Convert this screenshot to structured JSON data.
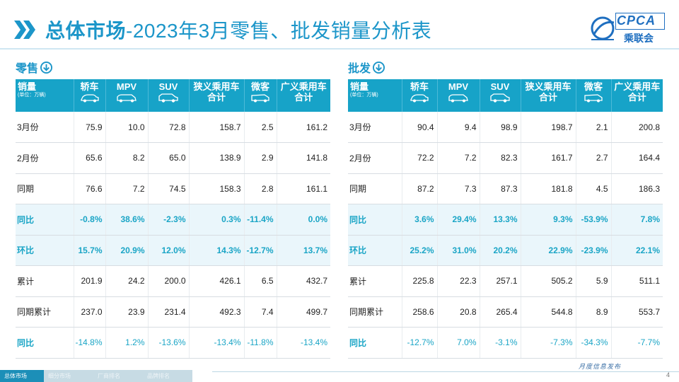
{
  "header": {
    "title_bold": "总体市场",
    "title_rest": "-2023年3月零售、批发销量分析表",
    "logo_text": "CPCA",
    "logo_sub": "乘联会"
  },
  "columns": {
    "corner_main": "销量",
    "corner_unit": "(单位：万辆)",
    "c1": "轿车",
    "c2": "MPV",
    "c3": "SUV",
    "c4": "狭义乘用车合计",
    "c5": "微客",
    "c6": "广义乘用车合计"
  },
  "retail": {
    "title": "零售",
    "rows": [
      {
        "label": "3月份",
        "v": [
          "75.9",
          "10.0",
          "72.8",
          "158.7",
          "2.5",
          "161.2"
        ]
      },
      {
        "label": "2月份",
        "v": [
          "65.6",
          "8.2",
          "65.0",
          "138.9",
          "2.9",
          "141.8"
        ]
      },
      {
        "label": "同期",
        "v": [
          "76.6",
          "7.2",
          "74.5",
          "158.3",
          "2.8",
          "161.1"
        ]
      },
      {
        "label": "同比",
        "v": [
          "-0.8%",
          "38.6%",
          "-2.3%",
          "0.3%",
          "-11.4%",
          "0.0%"
        ]
      },
      {
        "label": "环比",
        "v": [
          "15.7%",
          "20.9%",
          "12.0%",
          "14.3%",
          "-12.7%",
          "13.7%"
        ]
      },
      {
        "label": "累计",
        "v": [
          "201.9",
          "24.2",
          "200.0",
          "426.1",
          "6.5",
          "432.7"
        ]
      },
      {
        "label": "同期累计",
        "v": [
          "237.0",
          "23.9",
          "231.4",
          "492.3",
          "7.4",
          "499.7"
        ]
      },
      {
        "label": "同比",
        "v": [
          "-14.8%",
          "1.2%",
          "-13.6%",
          "-13.4%",
          "-11.8%",
          "-13.4%"
        ]
      }
    ]
  },
  "wholesale": {
    "title": "批发",
    "rows": [
      {
        "label": "3月份",
        "v": [
          "90.4",
          "9.4",
          "98.9",
          "198.7",
          "2.1",
          "200.8"
        ]
      },
      {
        "label": "2月份",
        "v": [
          "72.2",
          "7.2",
          "82.3",
          "161.7",
          "2.7",
          "164.4"
        ]
      },
      {
        "label": "同期",
        "v": [
          "87.2",
          "7.3",
          "87.3",
          "181.8",
          "4.5",
          "186.3"
        ]
      },
      {
        "label": "同比",
        "v": [
          "3.6%",
          "29.4%",
          "13.3%",
          "9.3%",
          "-53.9%",
          "7.8%"
        ]
      },
      {
        "label": "环比",
        "v": [
          "25.2%",
          "31.0%",
          "20.2%",
          "22.9%",
          "-23.9%",
          "22.1%"
        ]
      },
      {
        "label": "累计",
        "v": [
          "225.8",
          "22.3",
          "257.1",
          "505.2",
          "5.9",
          "511.1"
        ]
      },
      {
        "label": "同期累计",
        "v": [
          "258.6",
          "20.8",
          "265.4",
          "544.8",
          "8.9",
          "553.7"
        ]
      },
      {
        "label": "同比",
        "v": [
          "-12.7%",
          "7.0%",
          "-3.1%",
          "-7.3%",
          "-34.3%",
          "-7.7%"
        ]
      }
    ]
  },
  "footer": {
    "tabs": [
      "总体市场",
      "细分市场",
      "厂商排名",
      "品牌排名"
    ],
    "slogan": "月度信息发布",
    "page": "4"
  },
  "colors": {
    "accent": "#1c96c9",
    "header_bg": "#17a3c8",
    "highlight_text": "#1aa5c6"
  }
}
